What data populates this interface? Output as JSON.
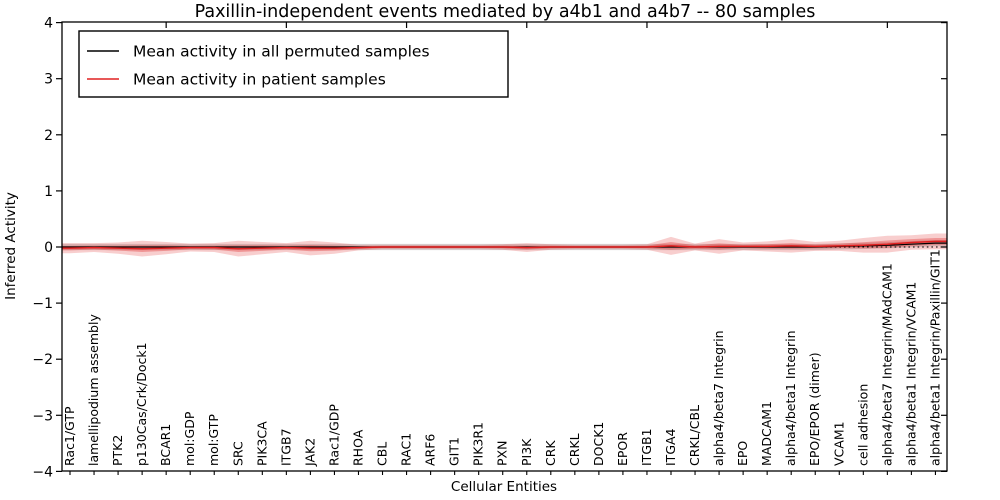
{
  "chart_data": {
    "type": "line",
    "title": "Paxillin-independent events mediated by a4b1 and a4b7 -- 80 samples",
    "xlabel": "Cellular Entities",
    "ylabel": "Inferred Activity",
    "ylim": [
      -4,
      4
    ],
    "ytick_values": [
      4,
      3,
      2,
      1,
      0,
      -1,
      -2,
      -3,
      -4
    ],
    "ytick_labels": [
      "4",
      "3",
      "2",
      "1",
      "0",
      "−1",
      "−2",
      "−3",
      "−4"
    ],
    "grid": false,
    "legend_position": "upper left",
    "zero_line": {
      "show": true,
      "style": "dotted",
      "color": "#000000",
      "value": 0
    },
    "categories": [
      "Rac1/GTP",
      "lamellipodium assembly",
      "PTK2",
      "p130Cas/Crk/Dock1",
      "BCAR1",
      "mol:GDP",
      "mol:GTP",
      "SRC",
      "PIK3CA",
      "ITGB7",
      "JAK2",
      "Rac1/GDP",
      "RHOA",
      "CBL",
      "RAC1",
      "ARF6",
      "GIT1",
      "PIK3R1",
      "PXN",
      "PI3K",
      "CRK",
      "CRKL",
      "DOCK1",
      "EPOR",
      "ITGB1",
      "ITGA4",
      "CRKL/CBL",
      "alpha4/beta7 Integrin",
      "EPO",
      "MADCAM1",
      "alpha4/beta1 Integrin",
      "EPO/EPOR (dimer)",
      "VCAM1",
      "cell adhesion",
      "alpha4/beta7 Integrin/MAdCAM1",
      "alpha4/beta1 Integrin/VCAM1",
      "alpha4/beta1 Integrin/Paxillin/GIT1"
    ],
    "series": [
      {
        "name": "Mean activity in all permuted samples",
        "color": "#000000",
        "values": [
          0,
          0,
          0,
          0,
          0,
          0,
          0,
          0,
          0,
          0,
          0,
          0,
          0,
          0,
          0,
          0,
          0,
          0,
          0,
          0,
          0,
          0,
          0,
          0,
          0,
          0,
          0,
          0,
          0,
          0,
          0,
          0,
          0.01,
          0.02,
          0.03,
          0.05,
          0.07
        ]
      },
      {
        "name": "Mean activity in patient samples",
        "color": "#e02020",
        "values": [
          -0.02,
          -0.01,
          -0.02,
          -0.03,
          -0.02,
          -0.01,
          -0.01,
          -0.03,
          -0.02,
          -0.01,
          -0.02,
          -0.02,
          -0.01,
          0,
          0,
          0,
          0,
          0,
          0,
          -0.01,
          0,
          0,
          0,
          0,
          0,
          0.02,
          0,
          0.01,
          0.01,
          0.01,
          0.02,
          0.01,
          0.02,
          0.03,
          0.05,
          0.08,
          0.1
        ]
      }
    ],
    "bands": [
      {
        "name": "permuted-samples-spread",
        "series": 0,
        "color": "#999999",
        "opacity": 0.4,
        "halfwidths": 0.055
      },
      {
        "name": "patient-samples-spread-outer",
        "series": 1,
        "color": "#e02020",
        "opacity": 0.22,
        "halfwidths": [
          0.09,
          0.08,
          0.1,
          0.14,
          0.11,
          0.07,
          0.08,
          0.14,
          0.11,
          0.08,
          0.13,
          0.1,
          0.05,
          0.04,
          0.04,
          0.04,
          0.04,
          0.04,
          0.05,
          0.08,
          0.05,
          0.04,
          0.04,
          0.04,
          0.05,
          0.16,
          0.06,
          0.13,
          0.07,
          0.09,
          0.12,
          0.08,
          0.09,
          0.13,
          0.15,
          0.13,
          0.14
        ]
      },
      {
        "name": "patient-samples-spread-inner",
        "series": 1,
        "color": "#e02020",
        "opacity": 0.32,
        "halfwidths": [
          0.04,
          0.035,
          0.045,
          0.06,
          0.05,
          0.03,
          0.035,
          0.06,
          0.05,
          0.035,
          0.055,
          0.045,
          0.025,
          0.02,
          0.02,
          0.02,
          0.02,
          0.02,
          0.025,
          0.035,
          0.025,
          0.02,
          0.02,
          0.02,
          0.025,
          0.07,
          0.03,
          0.055,
          0.03,
          0.04,
          0.05,
          0.035,
          0.04,
          0.055,
          0.065,
          0.06,
          0.06
        ]
      }
    ]
  }
}
